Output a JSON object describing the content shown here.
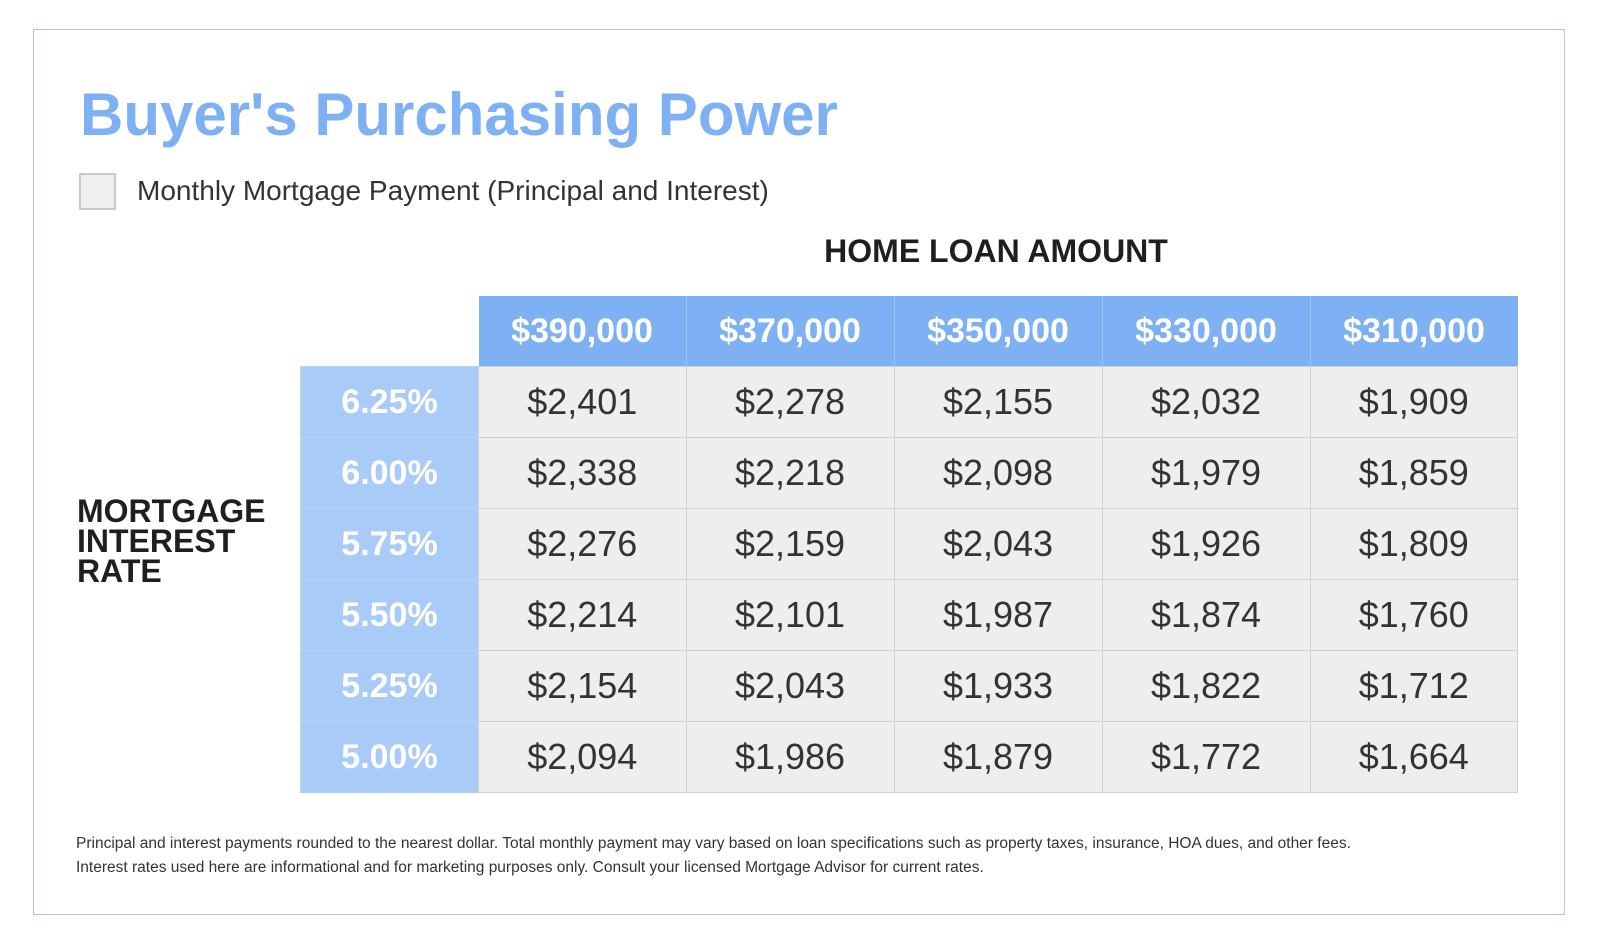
{
  "title": "Buyer's Purchasing Power",
  "legend": {
    "label": "Monthly Mortgage Payment (Principal and Interest)",
    "swatch_color": "#efefef"
  },
  "column_heading": "HOME LOAN AMOUNT",
  "row_heading": [
    "MORTGAGE",
    "INTEREST",
    "RATE"
  ],
  "colors": {
    "title": "#7db1f4",
    "header_fill": "#7db1f4",
    "rate_fill": "#a9cbf8",
    "cell_fill": "#eeeeee",
    "frame_border": "#a9c6f2"
  },
  "table": {
    "loan_amounts": [
      "$390,000",
      "$370,000",
      "$350,000",
      "$330,000",
      "$310,000"
    ],
    "rows": [
      {
        "rate": "6.25%",
        "payments": [
          "$2,401",
          "$2,278",
          "$2,155",
          "$2,032",
          "$1,909"
        ]
      },
      {
        "rate": "6.00%",
        "payments": [
          "$2,338",
          "$2,218",
          "$2,098",
          "$1,979",
          "$1,859"
        ]
      },
      {
        "rate": "5.75%",
        "payments": [
          "$2,276",
          "$2,159",
          "$2,043",
          "$1,926",
          "$1,809"
        ]
      },
      {
        "rate": "5.50%",
        "payments": [
          "$2,214",
          "$2,101",
          "$1,987",
          "$1,874",
          "$1,760"
        ]
      },
      {
        "rate": "5.25%",
        "payments": [
          "$2,154",
          "$2,043",
          "$1,933",
          "$1,822",
          "$1,712"
        ]
      },
      {
        "rate": "5.00%",
        "payments": [
          "$2,094",
          "$1,986",
          "$1,879",
          "$1,772",
          "$1,664"
        ]
      }
    ]
  },
  "footnote": [
    "Principal and interest payments rounded to the nearest dollar. Total monthly payment may vary based on loan specifications such as property taxes, insurance, HOA dues, and other fees.",
    "Interest rates used here are informational and for marketing purposes only. Consult your licensed Mortgage Advisor for current rates."
  ]
}
